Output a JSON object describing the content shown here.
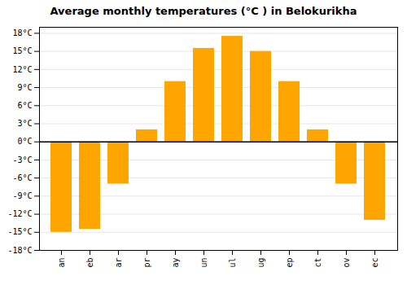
{
  "chart_data": {
    "type": "bar",
    "title": "Average monthly temperatures (°C ) in Belokurikha",
    "categories": [
      "an",
      "eb",
      "ar",
      "pr",
      "ay",
      "un",
      "ul",
      "ug",
      "ep",
      "ct",
      "ov",
      "ec"
    ],
    "values": [
      -15,
      -14.5,
      -7,
      2,
      10,
      15.5,
      17.5,
      15,
      10,
      2,
      -7,
      -13
    ],
    "color": "#FFA500",
    "ylim": [
      -18,
      19
    ],
    "yticks": [
      {
        "value": -18,
        "label": "-18°C"
      },
      {
        "value": -15,
        "label": "-15°C"
      },
      {
        "value": -12,
        "label": "-12°C"
      },
      {
        "value": -9,
        "label": "-9°C"
      },
      {
        "value": -6,
        "label": "-6°C"
      },
      {
        "value": -3,
        "label": "-3°C"
      },
      {
        "value": 0,
        "label": "0°C"
      },
      {
        "value": 3,
        "label": "3°C"
      },
      {
        "value": 6,
        "label": "6°C"
      },
      {
        "value": 9,
        "label": "9°C"
      },
      {
        "value": 12,
        "label": "12°C"
      },
      {
        "value": 15,
        "label": "15°C"
      },
      {
        "value": 18,
        "label": "18°C"
      }
    ],
    "grid": true
  }
}
